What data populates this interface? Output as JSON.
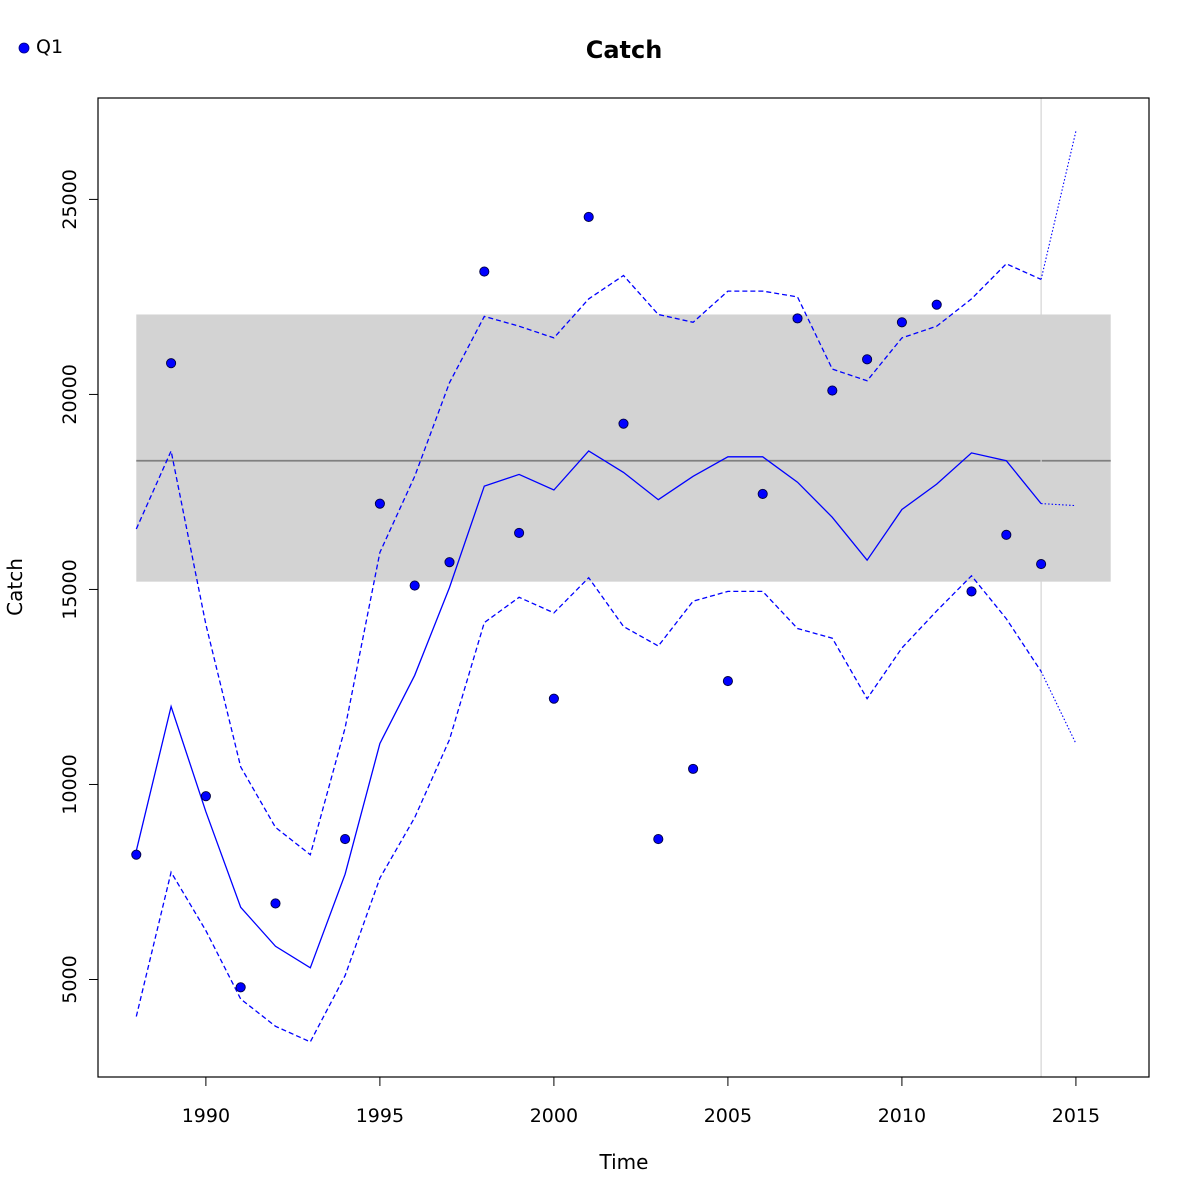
{
  "chart_data": {
    "type": "line",
    "title": "Catch",
    "xlabel": "Time",
    "ylabel": "Catch",
    "xlim": [
      1986.9,
      2017.1
    ],
    "ylim": [
      2500,
      27600
    ],
    "x_ticks": [
      {
        "value": 1990,
        "label": "1990"
      },
      {
        "value": 1995,
        "label": "1995"
      },
      {
        "value": 2000,
        "label": "2000"
      },
      {
        "value": 2005,
        "label": "2005"
      },
      {
        "value": 2010,
        "label": "2010"
      },
      {
        "value": 2015,
        "label": "2015"
      }
    ],
    "y_ticks": [
      {
        "value": 5000,
        "label": "5000"
      },
      {
        "value": 10000,
        "label": "10000"
      },
      {
        "value": 15000,
        "label": "15000"
      },
      {
        "value": 20000,
        "label": "20000"
      },
      {
        "value": 25000,
        "label": "25000"
      }
    ],
    "grid": false,
    "legend": {
      "position": "top-left",
      "entries": [
        {
          "label": "Q1",
          "color": "#0000ff",
          "marker": "point"
        }
      ]
    },
    "observed": {
      "name": "Q1",
      "color": "#0000ff",
      "points": [
        {
          "x": 1988,
          "y": 8200
        },
        {
          "x": 1989,
          "y": 20800
        },
        {
          "x": 1990,
          "y": 9700
        },
        {
          "x": 1991,
          "y": 4800
        },
        {
          "x": 1992,
          "y": 6950
        },
        {
          "x": 1994,
          "y": 8600
        },
        {
          "x": 1995,
          "y": 17200
        },
        {
          "x": 1996,
          "y": 15100
        },
        {
          "x": 1997,
          "y": 15700
        },
        {
          "x": 1998,
          "y": 23150
        },
        {
          "x": 1999,
          "y": 16450
        },
        {
          "x": 2000,
          "y": 12200
        },
        {
          "x": 2001,
          "y": 24550
        },
        {
          "x": 2002,
          "y": 19250
        },
        {
          "x": 2003,
          "y": 8600
        },
        {
          "x": 2004,
          "y": 10400
        },
        {
          "x": 2005,
          "y": 12650
        },
        {
          "x": 2006,
          "y": 17450
        },
        {
          "x": 2007,
          "y": 21950
        },
        {
          "x": 2008,
          "y": 20100
        },
        {
          "x": 2009,
          "y": 20900
        },
        {
          "x": 2010,
          "y": 21850
        },
        {
          "x": 2011,
          "y": 22300
        },
        {
          "x": 2012,
          "y": 14950
        },
        {
          "x": 2013,
          "y": 16400
        },
        {
          "x": 2014,
          "y": 15650
        }
      ]
    },
    "fitted": {
      "color": "#0000ff",
      "x": [
        1988,
        1989,
        1990,
        1991,
        1992,
        1993,
        1994,
        1995,
        1996,
        1997,
        1998,
        1999,
        2000,
        2001,
        2002,
        2003,
        2004,
        2005,
        2006,
        2007,
        2008,
        2009,
        2010,
        2011,
        2012,
        2013,
        2014
      ],
      "y": [
        8300,
        12000,
        9300,
        6850,
        5850,
        5300,
        7700,
        11050,
        12800,
        15050,
        17650,
        17950,
        17550,
        18550,
        18000,
        17300,
        17900,
        18400,
        18400,
        17750,
        16850,
        15750,
        17050,
        17700,
        18500,
        18300,
        17200
      ]
    },
    "upper_ci": {
      "color": "#0000ff",
      "style": "dashed",
      "x": [
        1988,
        1989,
        1990,
        1991,
        1992,
        1993,
        1994,
        1995,
        1996,
        1997,
        1998,
        1999,
        2000,
        2001,
        2002,
        2003,
        2004,
        2005,
        2006,
        2007,
        2008,
        2009,
        2010,
        2011,
        2012,
        2013,
        2014
      ],
      "y": [
        16550,
        18550,
        14100,
        10450,
        8900,
        8200,
        11450,
        15950,
        17900,
        20300,
        22000,
        21750,
        21450,
        22450,
        23050,
        22050,
        21850,
        22650,
        22650,
        22500,
        20650,
        20350,
        21450,
        21750,
        22450,
        23350,
        22950
      ]
    },
    "lower_ci": {
      "color": "#0000ff",
      "style": "dashed",
      "x": [
        1988,
        1989,
        1990,
        1991,
        1992,
        1993,
        1994,
        1995,
        1996,
        1997,
        1998,
        1999,
        2000,
        2001,
        2002,
        2003,
        2004,
        2005,
        2006,
        2007,
        2008,
        2009,
        2010,
        2011,
        2012,
        2013,
        2014
      ],
      "y": [
        4050,
        7750,
        6250,
        4500,
        3800,
        3400,
        5100,
        7600,
        9150,
        11150,
        14150,
        14800,
        14400,
        15300,
        14050,
        13550,
        14700,
        14950,
        14950,
        14000,
        13750,
        12200,
        13500,
        14450,
        15350,
        14250,
        12900
      ]
    },
    "forecast": {
      "color": "#0000ff",
      "style": "dotted",
      "fitted": {
        "x": [
          2014,
          2015
        ],
        "y": [
          17200,
          17150
        ]
      },
      "upper": {
        "x": [
          2014,
          2015
        ],
        "y": [
          22950,
          26750
        ]
      },
      "lower": {
        "x": [
          2014,
          2015
        ],
        "y": [
          12900,
          11050
        ]
      }
    },
    "reference_band": {
      "x": [
        1988,
        2016
      ],
      "y_low": 15200,
      "y_high": 22050,
      "color": "#d3d3d3"
    },
    "reference_line": {
      "y": 18300,
      "x": [
        1988,
        2016
      ],
      "color": "#808080"
    },
    "forecast_marker": {
      "x": 2014,
      "color": "#d3d3d3"
    }
  }
}
